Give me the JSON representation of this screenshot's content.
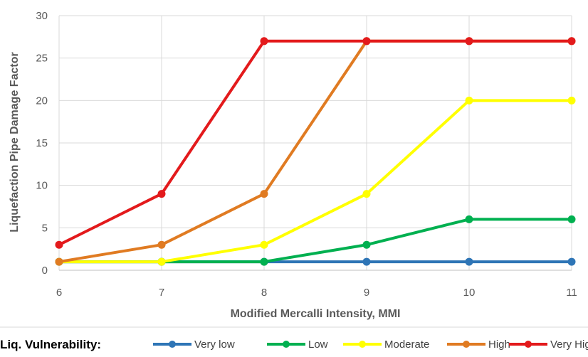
{
  "chart_data": {
    "type": "line",
    "xlabel": "Modified Mercalli Intensity, MMI",
    "ylabel": "Liquefaction Pipe Damage Factor",
    "x": [
      6,
      7,
      8,
      9,
      10,
      11
    ],
    "xlim": [
      6,
      11
    ],
    "ylim": [
      0,
      30
    ],
    "yticks": [
      0,
      5,
      10,
      15,
      20,
      25,
      30
    ],
    "grid": true,
    "legend_title": "Liq. Vulnerability:",
    "legend_position": "bottom",
    "series": [
      {
        "name": "Very low",
        "color": "#2E75B6",
        "values": [
          1,
          1,
          1,
          1,
          1,
          1
        ]
      },
      {
        "name": "Low",
        "color": "#00B050",
        "values": [
          1,
          1,
          1,
          3,
          6,
          6
        ]
      },
      {
        "name": "Moderate",
        "color": "#FFFF00",
        "values": [
          1,
          1,
          3,
          9,
          20,
          20
        ]
      },
      {
        "name": "High",
        "color": "#E07B22",
        "values": [
          1,
          3,
          9,
          27,
          27,
          27
        ]
      },
      {
        "name": "Very High",
        "color": "#E31A1C",
        "values": [
          3,
          9,
          27,
          27,
          27,
          27
        ]
      }
    ]
  }
}
